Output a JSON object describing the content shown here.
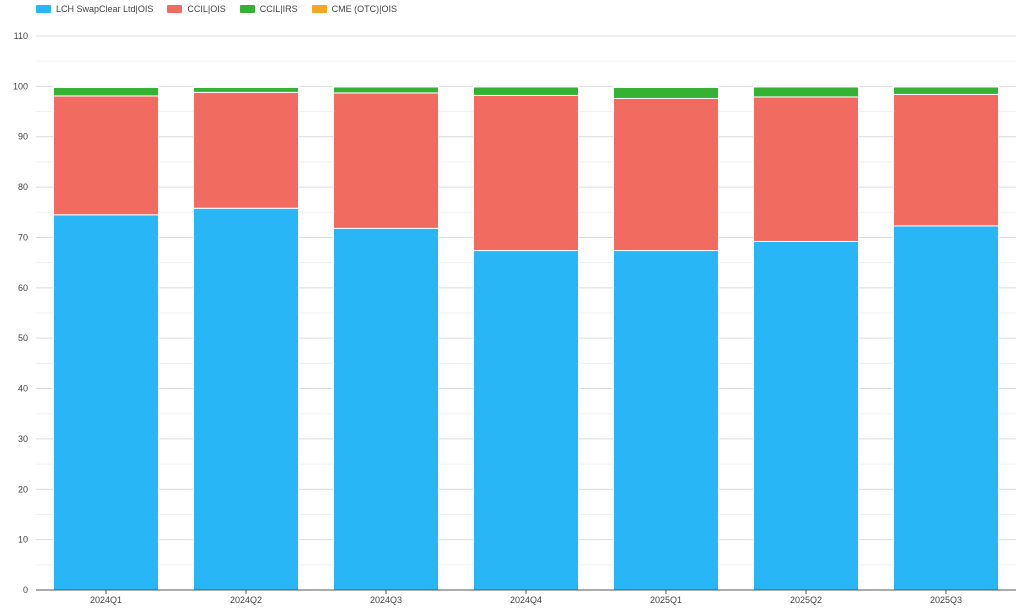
{
  "chart_data": {
    "type": "bar",
    "stacked": true,
    "categories": [
      "2024Q1",
      "2024Q2",
      "2024Q3",
      "2024Q4",
      "2025Q1",
      "2025Q2",
      "2025Q3"
    ],
    "series": [
      {
        "name": "LCH SwapClear Ltd|OIS",
        "color": "#29b6f6",
        "values": [
          74.5,
          75.8,
          71.8,
          67.4,
          67.4,
          69.2,
          72.3
        ]
      },
      {
        "name": "CCIL|OIS",
        "color": "#f26b60",
        "values": [
          23.6,
          23.0,
          26.9,
          30.8,
          30.2,
          28.7,
          26.1
        ]
      },
      {
        "name": "CCIL|IRS",
        "color": "#34b233",
        "values": [
          1.7,
          1.0,
          1.2,
          1.7,
          2.2,
          2.0,
          1.5
        ]
      },
      {
        "name": "CME (OTC)|OIS",
        "color": "#f5a623",
        "values": [
          0.2,
          0.2,
          0.1,
          0.1,
          0.2,
          0.1,
          0.1
        ]
      }
    ],
    "yticks": [
      0,
      10,
      20,
      30,
      40,
      50,
      60,
      70,
      80,
      90,
      100,
      110
    ],
    "ylim": [
      0,
      110
    ],
    "grid": true,
    "legend_position": "top-left"
  }
}
